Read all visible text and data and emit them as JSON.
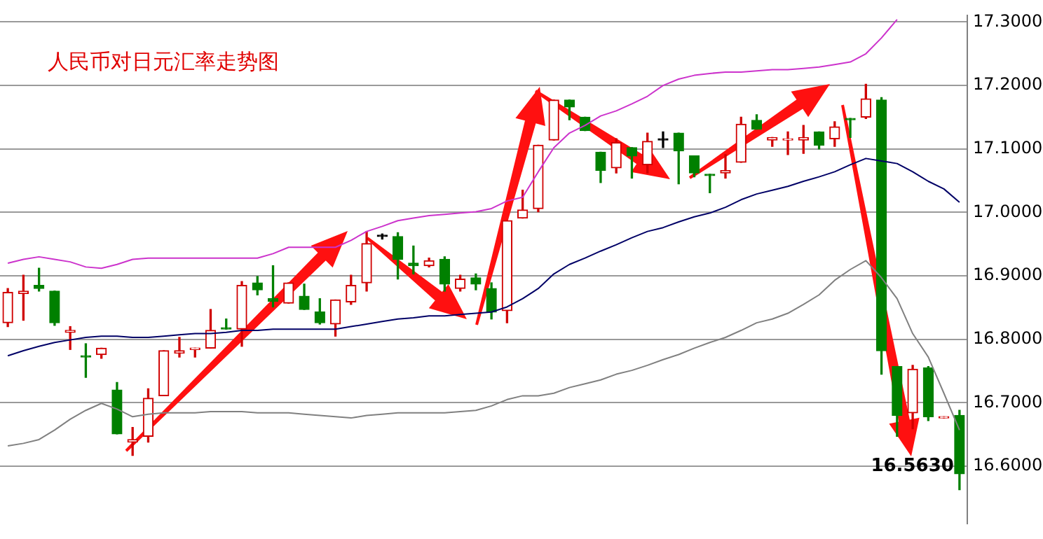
{
  "chart_data": {
    "type": "candlestick",
    "title": "人民币对日元汇率走势图",
    "categories": [
      null,
      null,
      null,
      null,
      null,
      null,
      null,
      null,
      null,
      null,
      null,
      null,
      null,
      null,
      null,
      null,
      null,
      null,
      null,
      null,
      null,
      null,
      null,
      null,
      null,
      null,
      null,
      null,
      null,
      null,
      null,
      null,
      null,
      null,
      null,
      null,
      null,
      null,
      null,
      null,
      null,
      null,
      null,
      null,
      null,
      null,
      null,
      null,
      null,
      null,
      null,
      null,
      null,
      null,
      null,
      null,
      null,
      null,
      null,
      null,
      null,
      null
    ],
    "ohlc": [
      [
        16.826,
        16.88,
        16.82,
        16.874
      ],
      [
        16.872,
        16.901,
        16.83,
        16.876
      ],
      [
        16.885,
        16.912,
        16.876,
        16.88
      ],
      [
        16.876,
        16.876,
        16.822,
        16.826
      ],
      [
        16.811,
        16.82,
        16.784,
        16.814
      ],
      [
        16.774,
        16.793,
        16.74,
        16.772
      ],
      [
        16.776,
        16.786,
        16.77,
        16.786
      ],
      [
        16.72,
        16.732,
        16.651,
        16.651
      ],
      [
        16.638,
        16.661,
        16.617,
        16.642
      ],
      [
        16.647,
        16.722,
        16.638,
        16.707
      ],
      [
        16.711,
        16.782,
        16.711,
        16.782
      ],
      [
        16.778,
        16.803,
        16.772,
        16.782
      ],
      [
        16.784,
        16.786,
        16.772,
        16.786
      ],
      [
        16.786,
        16.847,
        16.786,
        16.814
      ],
      [
        16.818,
        16.832,
        16.816,
        16.816
      ],
      [
        16.816,
        16.891,
        16.789,
        16.885
      ],
      [
        16.889,
        16.899,
        16.87,
        16.878
      ],
      [
        16.864,
        16.916,
        16.851,
        16.86
      ],
      [
        16.857,
        16.889,
        16.857,
        16.889
      ],
      [
        16.868,
        16.887,
        16.847,
        16.847
      ],
      [
        16.843,
        16.864,
        16.824,
        16.826
      ],
      [
        16.824,
        16.862,
        16.805,
        16.862
      ],
      [
        16.859,
        16.901,
        16.855,
        16.885
      ],
      [
        16.889,
        16.97,
        16.876,
        16.951
      ],
      [
        16.962,
        16.966,
        16.958,
        16.962
      ],
      [
        16.962,
        16.968,
        16.895,
        16.926
      ],
      [
        16.92,
        16.947,
        16.903,
        16.916
      ],
      [
        16.916,
        16.928,
        16.914,
        16.924
      ],
      [
        16.926,
        16.93,
        16.876,
        16.887
      ],
      [
        16.88,
        16.901,
        16.876,
        16.895
      ],
      [
        16.897,
        16.903,
        16.878,
        16.887
      ],
      [
        16.88,
        16.889,
        16.832,
        16.843
      ],
      [
        16.845,
        16.987,
        16.826,
        16.987
      ],
      [
        16.991,
        17.035,
        16.991,
        17.004
      ],
      [
        17.006,
        17.106,
        17.001,
        17.106
      ],
      [
        17.114,
        17.177,
        17.114,
        17.177
      ],
      [
        17.177,
        17.177,
        17.146,
        17.166
      ],
      [
        17.15,
        17.15,
        17.129,
        17.129
      ],
      [
        17.095,
        17.095,
        17.047,
        17.066
      ],
      [
        17.07,
        17.116,
        17.062,
        17.11
      ],
      [
        17.102,
        17.102,
        17.054,
        17.089
      ],
      [
        17.075,
        17.125,
        17.062,
        17.112
      ],
      [
        17.114,
        17.127,
        17.102,
        17.114
      ],
      [
        17.125,
        17.125,
        17.045,
        17.097
      ],
      [
        17.089,
        17.089,
        17.056,
        17.062
      ],
      [
        17.06,
        17.06,
        17.031,
        17.058
      ],
      [
        17.062,
        17.091,
        17.054,
        17.066
      ],
      [
        17.079,
        17.15,
        17.079,
        17.139
      ],
      [
        17.145,
        17.154,
        17.131,
        17.131
      ],
      [
        17.114,
        17.118,
        17.104,
        17.118
      ],
      [
        17.114,
        17.127,
        17.091,
        17.116
      ],
      [
        17.114,
        17.137,
        17.093,
        17.118
      ],
      [
        17.127,
        17.127,
        17.1,
        17.106
      ],
      [
        17.116,
        17.143,
        17.104,
        17.135
      ],
      [
        17.148,
        17.148,
        17.118,
        17.146
      ],
      [
        17.15,
        17.202,
        17.148,
        17.179
      ],
      [
        17.177,
        17.181,
        16.745,
        16.782
      ],
      [
        16.757,
        16.757,
        16.647,
        16.68
      ],
      [
        16.684,
        16.759,
        16.659,
        16.753
      ],
      [
        16.755,
        16.757,
        16.672,
        16.678
      ],
      [
        16.676,
        16.678,
        16.676,
        16.678
      ],
      [
        16.68,
        16.688,
        16.563,
        16.588
      ]
    ],
    "colors": [
      "#d00000",
      "#d00000",
      "#008000",
      "#008000",
      "#d00000",
      "#008000",
      "#d00000",
      "#008000",
      "#d00000",
      "#d00000",
      "#d00000",
      "#d00000",
      "#d00000",
      "#d00000",
      "#008000",
      "#d00000",
      "#008000",
      "#008000",
      "#d00000",
      "#008000",
      "#008000",
      "#d00000",
      "#d00000",
      "#d00000",
      "#000000",
      "#008000",
      "#008000",
      "#d00000",
      "#008000",
      "#d00000",
      "#008000",
      "#008000",
      "#d00000",
      "#d00000",
      "#d00000",
      "#d00000",
      "#008000",
      "#008000",
      "#008000",
      "#d00000",
      "#008000",
      "#d00000",
      "#000000",
      "#008000",
      "#008000",
      "#008000",
      "#d00000",
      "#d00000",
      "#008000",
      "#d00000",
      "#d00000",
      "#d00000",
      "#008000",
      "#d00000",
      "#008000",
      "#d00000",
      "#008000",
      "#008000",
      "#d00000",
      "#008000",
      "#d00000",
      "#008000"
    ],
    "series": [
      {
        "type": "line",
        "color": "#cc33cc",
        "values": [
          16.92,
          16.926,
          16.93,
          16.926,
          16.922,
          16.914,
          16.912,
          16.918,
          16.926,
          16.928,
          16.928,
          16.928,
          16.928,
          16.928,
          16.928,
          16.928,
          16.928,
          16.935,
          16.945,
          16.945,
          16.945,
          16.945,
          16.956,
          16.97,
          16.978,
          16.987,
          16.991,
          16.995,
          16.997,
          16.999,
          17.001,
          17.006,
          17.018,
          17.024,
          17.064,
          17.102,
          17.125,
          17.137,
          17.152,
          17.16,
          17.171,
          17.183,
          17.2,
          17.21,
          17.216,
          17.219,
          17.221,
          17.221,
          17.223,
          17.225,
          17.225,
          17.227,
          17.229,
          17.233,
          17.237,
          17.25,
          17.275,
          17.304,
          null,
          null,
          null,
          null
        ]
      },
      {
        "type": "line",
        "color": "#000066",
        "values": [
          16.774,
          16.782,
          16.789,
          16.795,
          16.799,
          16.803,
          16.805,
          16.805,
          16.803,
          16.803,
          16.805,
          16.807,
          16.809,
          16.809,
          16.811,
          16.814,
          16.814,
          16.816,
          16.816,
          16.816,
          16.816,
          16.816,
          16.82,
          16.824,
          16.828,
          16.832,
          16.834,
          16.837,
          16.837,
          16.839,
          16.841,
          16.843,
          16.851,
          16.864,
          16.88,
          16.903,
          16.918,
          16.928,
          16.939,
          16.949,
          16.96,
          16.97,
          16.976,
          16.985,
          16.993,
          16.999,
          17.008,
          17.02,
          17.029,
          17.035,
          17.041,
          17.049,
          17.056,
          17.064,
          17.075,
          17.085,
          17.081,
          17.077,
          17.064,
          17.049,
          17.037,
          17.016
        ]
      },
      {
        "type": "line",
        "color": "#808080",
        "values": [
          16.632,
          16.636,
          16.642,
          16.657,
          16.674,
          16.688,
          16.699,
          16.69,
          16.678,
          16.682,
          16.684,
          16.684,
          16.684,
          16.686,
          16.686,
          16.686,
          16.684,
          16.684,
          16.684,
          16.682,
          16.68,
          16.678,
          16.676,
          16.68,
          16.682,
          16.684,
          16.684,
          16.684,
          16.684,
          16.686,
          16.688,
          16.695,
          16.705,
          16.711,
          16.711,
          16.715,
          16.724,
          16.73,
          16.736,
          16.745,
          16.751,
          16.759,
          16.768,
          16.776,
          16.786,
          16.795,
          16.803,
          16.814,
          16.826,
          16.832,
          16.841,
          16.855,
          16.87,
          16.893,
          16.91,
          16.924,
          16.897,
          16.864,
          16.809,
          16.772,
          16.715,
          16.657
        ]
      }
    ],
    "ylim": [
      16.51,
      17.31
    ],
    "yticks": [
      {
        "value": 16.6,
        "label": "16.6000"
      },
      {
        "value": 16.7,
        "label": "16.7000"
      },
      {
        "value": 16.8,
        "label": "16.8000"
      },
      {
        "value": 16.9,
        "label": "16.9000"
      },
      {
        "value": 17.0,
        "label": "17.0000"
      },
      {
        "value": 17.1,
        "label": "17.1000"
      },
      {
        "value": 17.2,
        "label": "17.2000"
      },
      {
        "value": 17.3,
        "label": "17.3000"
      }
    ],
    "grid": "y",
    "legend": false,
    "tick_labels": "y",
    "annotations": [
      "16.5630"
    ]
  }
}
